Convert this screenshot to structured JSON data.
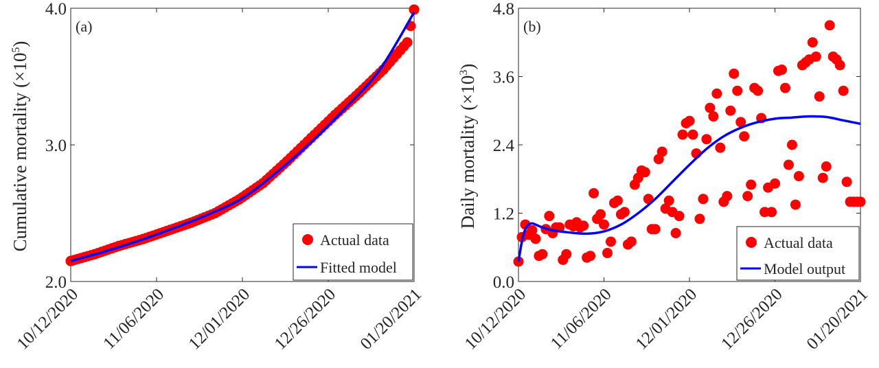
{
  "chart_data": [
    {
      "type": "scatter",
      "panel_label": "(a)",
      "xlabel": "",
      "ylabel": "Cumulative mortality",
      "ylabel_unit": "(×10",
      "ylabel_exp": "5",
      "ylabel_close": ")",
      "x_ticks": [
        "10/12/2020",
        "11/06/2020",
        "12/01/2020",
        "12/26/2020",
        "01/20/2021"
      ],
      "xlim": [
        "10/12/2020",
        "01/20/2021"
      ],
      "ylim": [
        2.0,
        4.0
      ],
      "y_ticks": [
        "2.0",
        "3.0",
        "4.0"
      ],
      "grid": false,
      "legend_position": "bottom-right",
      "series": [
        {
          "name": "Actual data",
          "kind": "markers",
          "color": "#ff0000",
          "x": [
            "10/12/2020",
            "10/19/2020",
            "10/26/2020",
            "11/02/2020",
            "11/09/2020",
            "11/16/2020",
            "11/23/2020",
            "11/30/2020",
            "12/07/2020",
            "12/14/2020",
            "12/21/2020",
            "12/28/2020",
            "01/04/2021",
            "01/11/2021",
            "01/18/2021",
            "01/20/2021"
          ],
          "y": [
            2.15,
            2.2,
            2.26,
            2.31,
            2.37,
            2.43,
            2.5,
            2.6,
            2.72,
            2.88,
            3.05,
            3.22,
            3.38,
            3.55,
            3.75,
            3.99
          ]
        },
        {
          "name": "Fitted model",
          "kind": "line",
          "color": "#0000ff",
          "x": [
            "10/12/2020",
            "10/22/2020",
            "11/01/2020",
            "11/11/2020",
            "11/21/2020",
            "12/01/2020",
            "12/11/2020",
            "12/21/2020",
            "12/31/2020",
            "01/10/2021",
            "01/20/2021"
          ],
          "y": [
            2.15,
            2.22,
            2.3,
            2.39,
            2.49,
            2.61,
            2.8,
            3.02,
            3.27,
            3.55,
            3.97
          ]
        }
      ]
    },
    {
      "type": "scatter",
      "panel_label": "(b)",
      "xlabel": "",
      "ylabel": "Daily mortality",
      "ylabel_unit": "(×10",
      "ylabel_exp": "3",
      "ylabel_close": ")",
      "x_ticks": [
        "10/12/2020",
        "11/06/2020",
        "12/01/2020",
        "12/26/2020",
        "01/20/2021"
      ],
      "xlim": [
        "10/12/2020",
        "01/20/2021"
      ],
      "ylim": [
        0.0,
        4.8
      ],
      "y_ticks": [
        "0.0",
        "1.2",
        "2.4",
        "3.6",
        "4.8"
      ],
      "grid": false,
      "legend_position": "bottom-right",
      "series": [
        {
          "name": "Actual data",
          "kind": "markers",
          "color": "#ff0000",
          "x_day": [
            0,
            1,
            2,
            3,
            4,
            5,
            6,
            7,
            8,
            9,
            10,
            11,
            12,
            13,
            14,
            15,
            16,
            17,
            18,
            19,
            20,
            21,
            22,
            23,
            24,
            25,
            26,
            27,
            28,
            29,
            30,
            31,
            32,
            33,
            34,
            35,
            36,
            37,
            38,
            39,
            40,
            41,
            42,
            43,
            44,
            45,
            46,
            47,
            48,
            49,
            50,
            51,
            52,
            53,
            54,
            55,
            56,
            57,
            58,
            59,
            60,
            61,
            62,
            63,
            64,
            65,
            66,
            67,
            68,
            69,
            70,
            71,
            72,
            73,
            74,
            75,
            76,
            77,
            78,
            79,
            80,
            81,
            82,
            83,
            84,
            85,
            86,
            87,
            88,
            89,
            90,
            91,
            92,
            93,
            94,
            95,
            96,
            97,
            98,
            99,
            100
          ],
          "y": [
            0.35,
            0.78,
            1.0,
            0.82,
            0.9,
            0.75,
            0.45,
            0.48,
            0.92,
            1.15,
            0.85,
            0.95,
            0.95,
            0.38,
            0.48,
            1.0,
            0.97,
            1.04,
            0.95,
            0.98,
            0.42,
            0.45,
            1.55,
            1.1,
            1.18,
            1.0,
            0.5,
            0.7,
            1.38,
            1.42,
            1.18,
            1.22,
            0.65,
            0.7,
            1.7,
            1.82,
            1.95,
            1.92,
            1.45,
            0.92,
            0.92,
            2.15,
            2.28,
            1.28,
            1.42,
            1.22,
            0.85,
            1.15,
            2.58,
            2.78,
            2.82,
            2.58,
            2.25,
            1.1,
            1.45,
            2.5,
            3.05,
            2.9,
            3.3,
            2.35,
            1.4,
            1.5,
            3.0,
            3.65,
            3.35,
            2.8,
            2.55,
            1.5,
            1.7,
            3.4,
            3.35,
            2.87,
            1.22,
            1.65,
            1.22,
            1.72,
            3.7,
            3.72,
            3.4,
            2.05,
            2.4,
            1.35,
            1.85,
            3.8,
            3.85,
            3.9,
            4.2,
            3.95,
            3.25,
            1.82,
            2.02,
            4.5,
            3.95,
            3.9,
            3.8,
            3.35,
            1.75,
            1.4,
            1.4,
            1.4,
            1.4
          ]
        },
        {
          "name": "Model output",
          "kind": "line",
          "color": "#0000ff",
          "x_day": [
            0,
            1,
            2,
            3,
            4,
            5,
            7,
            10,
            15,
            20,
            25,
            30,
            35,
            40,
            45,
            50,
            55,
            60,
            65,
            70,
            75,
            80,
            85,
            90,
            95,
            100
          ],
          "y": [
            0.35,
            0.7,
            0.92,
            1.0,
            1.02,
            1.0,
            0.95,
            0.9,
            0.86,
            0.84,
            0.88,
            1.0,
            1.2,
            1.45,
            1.75,
            2.05,
            2.33,
            2.55,
            2.7,
            2.8,
            2.86,
            2.88,
            2.9,
            2.89,
            2.83,
            2.77
          ]
        }
      ]
    }
  ]
}
